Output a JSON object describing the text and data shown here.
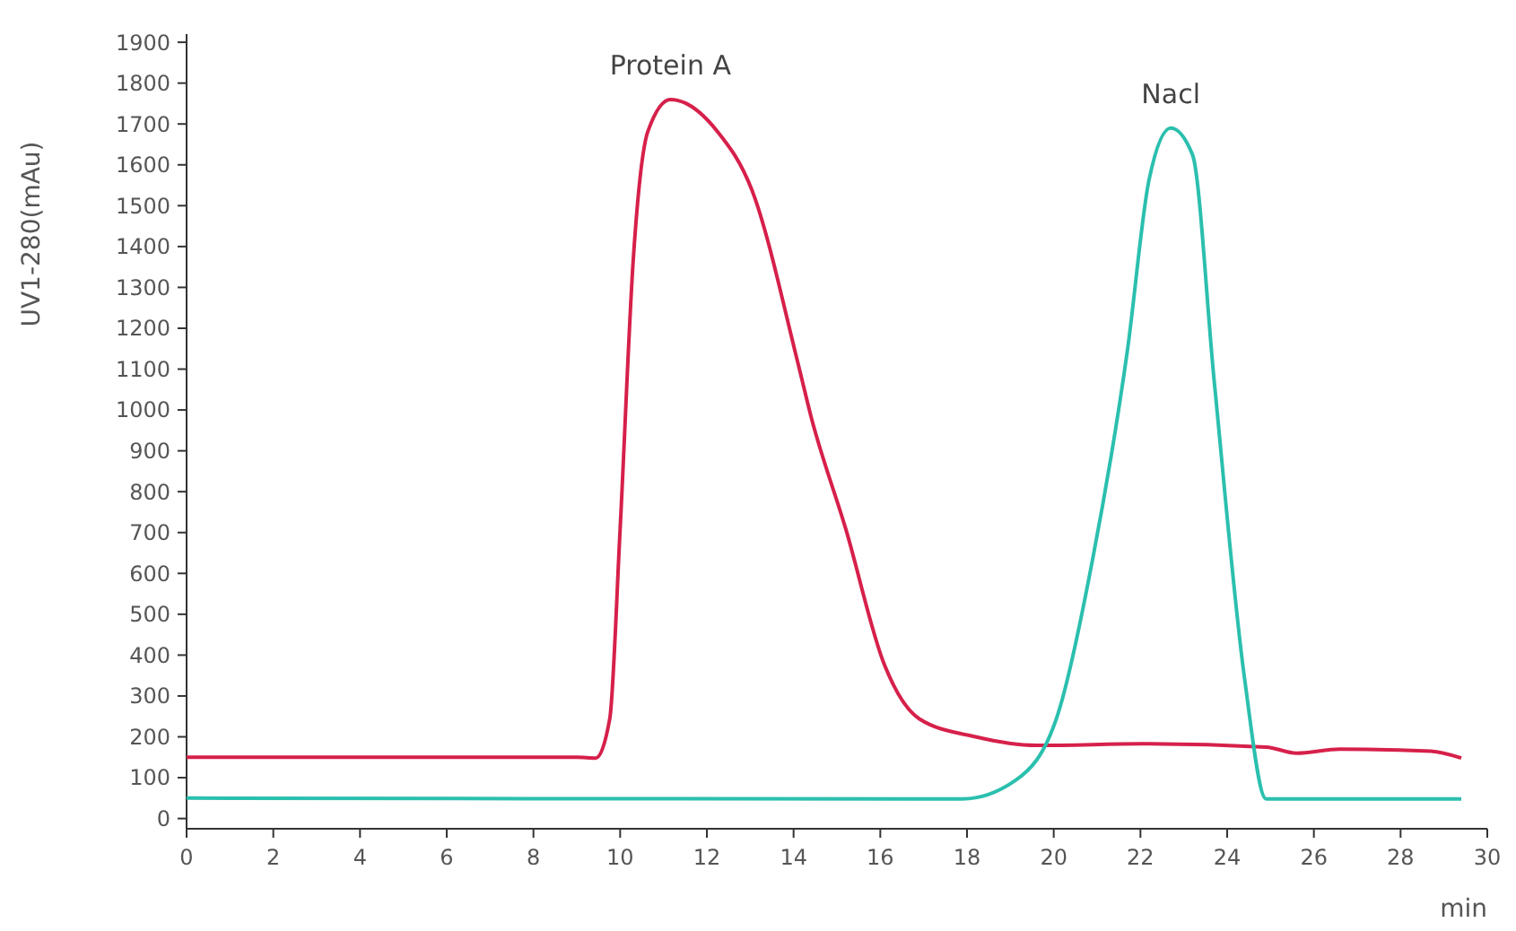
{
  "chart_data": {
    "type": "line",
    "xlabel": "min",
    "ylabel": "UV1-280(mAu)",
    "xlim": [
      0,
      30
    ],
    "ylim": [
      -25,
      1920
    ],
    "xticks": [
      0,
      2,
      4,
      6,
      8,
      10,
      12,
      14,
      16,
      18,
      20,
      22,
      24,
      26,
      28,
      30
    ],
    "yticks": [
      0,
      100,
      200,
      300,
      400,
      500,
      600,
      700,
      800,
      900,
      1000,
      1100,
      1200,
      1300,
      1400,
      1500,
      1600,
      1700,
      1800,
      1900
    ],
    "grid": false,
    "marker": "none",
    "line_style": "solid",
    "series": [
      {
        "name": "Protein A",
        "color": "#d6204a",
        "x": [
          0,
          9.0,
          9.44,
          9.76,
          10.0,
          10.3,
          10.64,
          11.16,
          12.24,
          13.04,
          14.1,
          14.4,
          15.2,
          16.1,
          16.9,
          18.2,
          19.6,
          22.2,
          24.9,
          25.6,
          26.6,
          28.7,
          29.4
        ],
        "values": [
          150,
          150,
          148,
          244,
          710,
          1364,
          1682,
          1760,
          1682,
          1538,
          1115,
          985,
          710,
          375,
          244,
          200,
          179,
          183,
          175,
          160,
          170,
          165,
          148
        ]
      },
      {
        "name": "Nacl",
        "color": "#2bbfae",
        "x": [
          0,
          17.9,
          19.1,
          20.1,
          20.9,
          21.7,
          22.2,
          22.7,
          23.2,
          23.7,
          24.4,
          24.9,
          28.7,
          29.4
        ],
        "values": [
          50,
          48,
          92,
          257,
          636,
          1146,
          1564,
          1690,
          1625,
          1072,
          344,
          48,
          48,
          48
        ]
      }
    ]
  }
}
